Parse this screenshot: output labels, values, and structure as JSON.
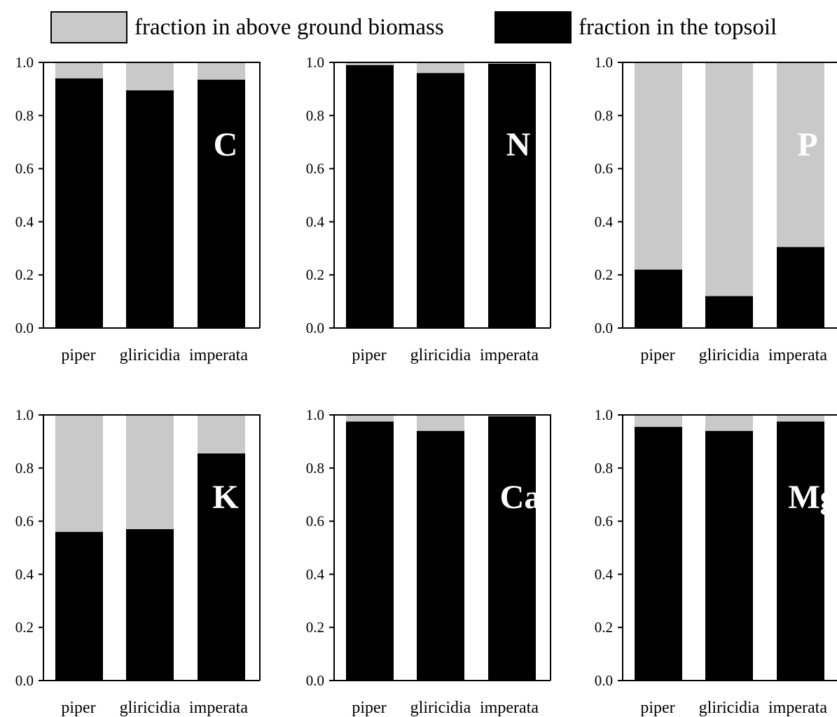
{
  "legend": {
    "items": [
      {
        "label": "fraction in above ground biomass",
        "color": "#c9c9c9"
      },
      {
        "label": "fraction in the topsoil",
        "color": "#000000"
      }
    ]
  },
  "chart_data": [
    {
      "type": "bar",
      "stacked": true,
      "panel_label": "C",
      "categories": [
        "piper",
        "gliricidia",
        "imperata"
      ],
      "ylim": [
        0,
        1.0
      ],
      "yticks": [
        "0.0",
        "0.2",
        "0.4",
        "0.6",
        "0.8",
        "1.0"
      ],
      "series": [
        {
          "name": "fraction in the topsoil",
          "values": [
            0.94,
            0.895,
            0.935
          ]
        },
        {
          "name": "fraction in above ground biomass",
          "values": [
            0.06,
            0.105,
            0.065
          ]
        }
      ]
    },
    {
      "type": "bar",
      "stacked": true,
      "panel_label": "N",
      "categories": [
        "piper",
        "gliricidia",
        "imperata"
      ],
      "ylim": [
        0,
        1.0
      ],
      "yticks": [
        "0.0",
        "0.2",
        "0.4",
        "0.6",
        "0.8",
        "1.0"
      ],
      "series": [
        {
          "name": "fraction in the topsoil",
          "values": [
            0.99,
            0.96,
            0.995
          ]
        },
        {
          "name": "fraction in above ground biomass",
          "values": [
            0.01,
            0.04,
            0.005
          ]
        }
      ]
    },
    {
      "type": "bar",
      "stacked": true,
      "panel_label": "P",
      "categories": [
        "piper",
        "gliricidia",
        "imperata"
      ],
      "ylim": [
        0,
        1.0
      ],
      "yticks": [
        "0.0",
        "0.2",
        "0.4",
        "0.6",
        "0.8",
        "1.0"
      ],
      "series": [
        {
          "name": "fraction in the topsoil",
          "values": [
            0.22,
            0.12,
            0.305
          ]
        },
        {
          "name": "fraction in above ground biomass",
          "values": [
            0.78,
            0.88,
            0.695
          ]
        }
      ]
    },
    {
      "type": "bar",
      "stacked": true,
      "panel_label": "K",
      "categories": [
        "piper",
        "gliricidia",
        "imperata"
      ],
      "ylim": [
        0,
        1.0
      ],
      "yticks": [
        "0.0",
        "0.2",
        "0.4",
        "0.6",
        "0.8",
        "1.0"
      ],
      "series": [
        {
          "name": "fraction in the topsoil",
          "values": [
            0.56,
            0.57,
            0.855
          ]
        },
        {
          "name": "fraction in above ground biomass",
          "values": [
            0.44,
            0.43,
            0.145
          ]
        }
      ]
    },
    {
      "type": "bar",
      "stacked": true,
      "panel_label": "Ca",
      "categories": [
        "piper",
        "gliricidia",
        "imperata"
      ],
      "ylim": [
        0,
        1.0
      ],
      "yticks": [
        "0.0",
        "0.2",
        "0.4",
        "0.6",
        "0.8",
        "1.0"
      ],
      "series": [
        {
          "name": "fraction in the topsoil",
          "values": [
            0.975,
            0.94,
            0.995
          ]
        },
        {
          "name": "fraction in above ground biomass",
          "values": [
            0.025,
            0.06,
            0.005
          ]
        }
      ]
    },
    {
      "type": "bar",
      "stacked": true,
      "panel_label": "Mg",
      "categories": [
        "piper",
        "gliricidia",
        "imperata"
      ],
      "ylim": [
        0,
        1.0
      ],
      "yticks": [
        "0.0",
        "0.2",
        "0.4",
        "0.6",
        "0.8",
        "1.0"
      ],
      "series": [
        {
          "name": "fraction in the topsoil",
          "values": [
            0.955,
            0.94,
            0.975
          ]
        },
        {
          "name": "fraction in above ground biomass",
          "values": [
            0.045,
            0.06,
            0.025
          ]
        }
      ]
    }
  ]
}
